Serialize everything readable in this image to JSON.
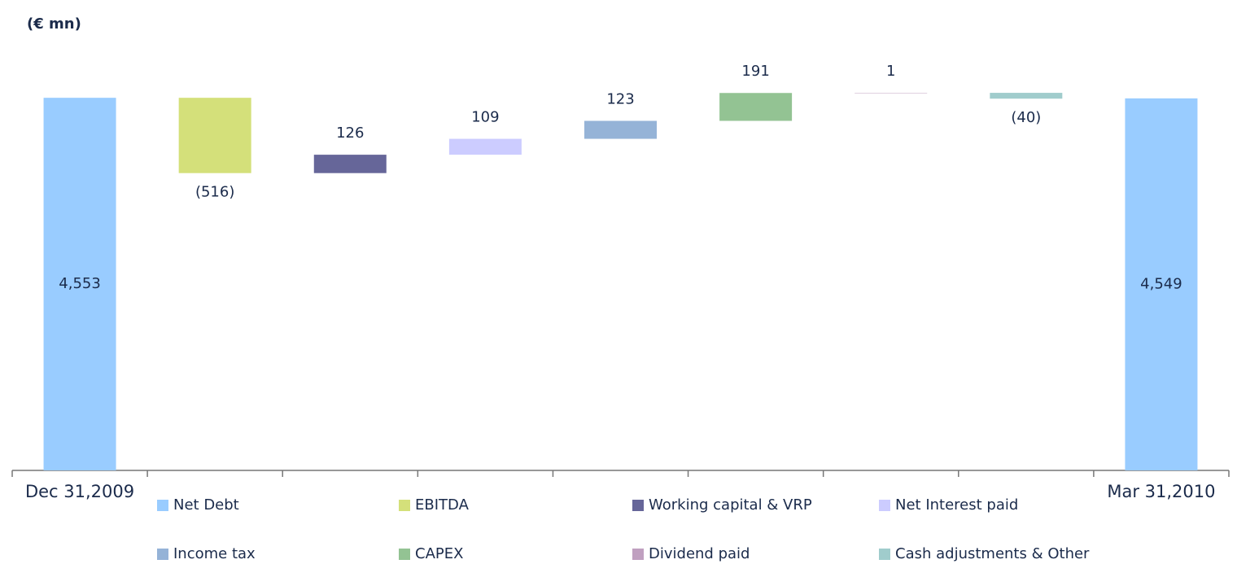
{
  "chart_data": {
    "type": "waterfall",
    "title": "(€ mn)",
    "categories": [
      "Dec 31,2009",
      null,
      null,
      null,
      null,
      null,
      null,
      null,
      "Mar 31,2010"
    ],
    "values": [
      4553,
      -516,
      126,
      109,
      123,
      191,
      1,
      -40,
      4549
    ],
    "value_labels": [
      "4,553",
      "(516)",
      "126",
      "109",
      "123",
      "191",
      "1",
      "(40)",
      "4,549"
    ],
    "measures": [
      "absolute",
      "relative",
      "relative",
      "relative",
      "relative",
      "relative",
      "relative",
      "relative",
      "total"
    ],
    "colors": [
      "#99ccff",
      "#d4e07a",
      "#666699",
      "#ccccff",
      "#95b3d7",
      "#93c393",
      "#c0a0c0",
      "#a0cccc",
      "#99ccff"
    ],
    "ylim": [
      2000,
      5000
    ],
    "legend": [
      {
        "name": "Net Debt",
        "color": "#99ccff"
      },
      {
        "name": "EBITDA",
        "color": "#d4e07a"
      },
      {
        "name": "Working capital & VRP",
        "color": "#666699"
      },
      {
        "name": "Net Interest paid",
        "color": "#ccccff"
      },
      {
        "name": "Income tax",
        "color": "#95b3d7"
      },
      {
        "name": "CAPEX",
        "color": "#93c393"
      },
      {
        "name": "Dividend paid",
        "color": "#c0a0c0"
      },
      {
        "name": "Cash adjustments & Other",
        "color": "#a0cccc"
      }
    ]
  }
}
